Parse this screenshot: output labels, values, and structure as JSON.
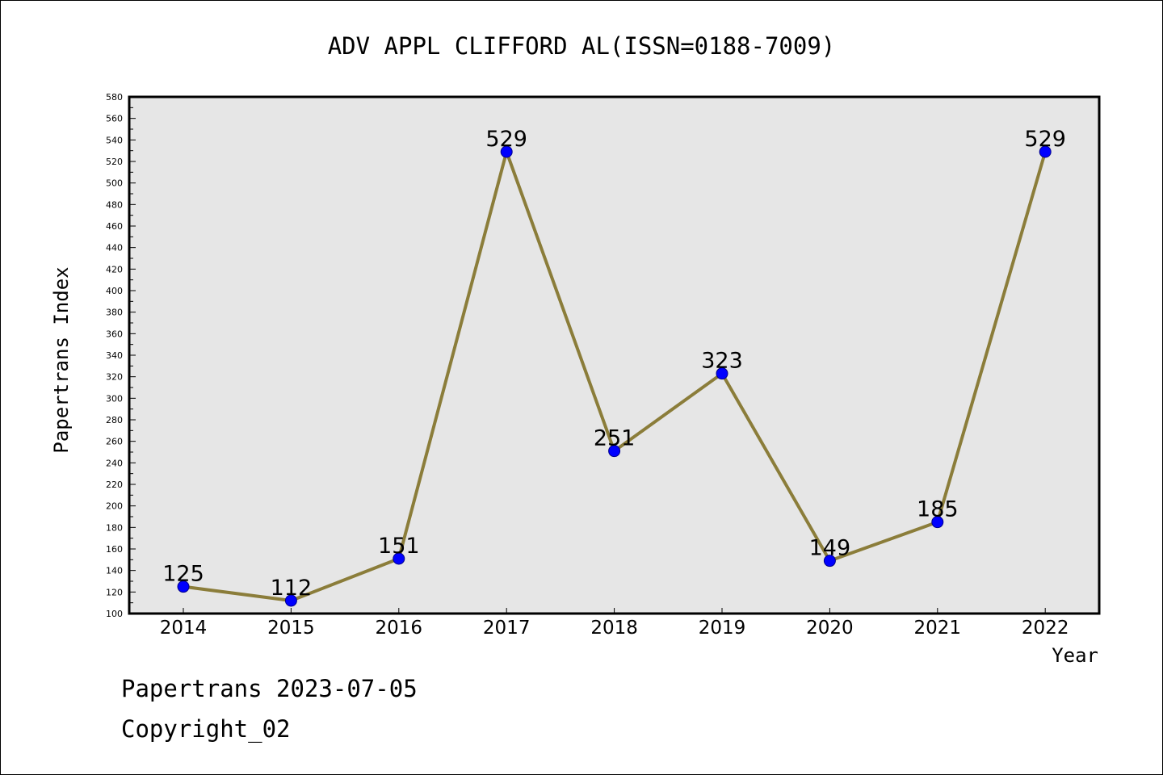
{
  "chart_data": {
    "type": "line",
    "title": "ADV APPL CLIFFORD AL(ISSN=0188-7009)",
    "xlabel": "Year",
    "ylabel": "Papertrans Index",
    "categories": [
      "2014",
      "2015",
      "2016",
      "2017",
      "2018",
      "2019",
      "2020",
      "2021",
      "2022"
    ],
    "series": [
      {
        "values": [
          125,
          112,
          151,
          529,
          251,
          323,
          149,
          185,
          529
        ]
      }
    ],
    "data_labels": [
      "125",
      "112",
      "151",
      "529",
      "251",
      "323",
      "149",
      "185",
      "529"
    ],
    "ylim": [
      100,
      580
    ],
    "y_tick_step": 20,
    "y_minor_step": 10,
    "grid": false,
    "legend": "none",
    "colors": {
      "line": "#8b7d3a",
      "marker": "#0000ff",
      "marker_edge": "#00008b",
      "plot_bg": "#e6e6e6",
      "axes": "#000000"
    }
  },
  "footer": {
    "line1": "Papertrans 2023-07-05",
    "line2": "Copyright_02"
  }
}
